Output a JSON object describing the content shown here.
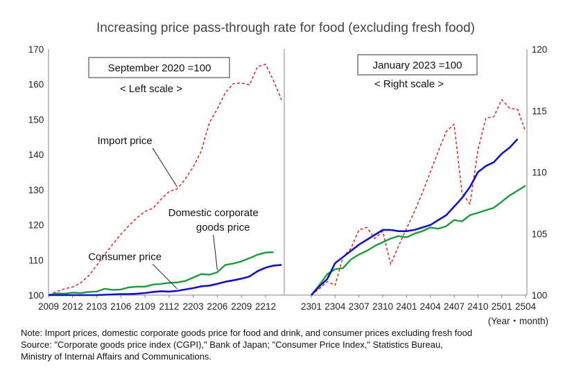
{
  "title": "Increasing price pass-through rate for food (excluding fresh food)",
  "xunit": "(Year・month)",
  "note": "Note: Import prices, domestic corporate goods price for food and drink, and consumer prices excluding fresh food",
  "source_line1": "Source: \"Corporate goods price index (CGPI),\" Bank of Japan;  \"Consumer Price Index,\" Statistics Bureau,",
  "source_line2": "Ministry of Internal Affairs and Communications.",
  "colors": {
    "import": "#e02020",
    "domestic": "#1a9a3a",
    "consumer": "#1010c8",
    "axis": "#808080"
  },
  "chart_data": [
    {
      "type": "line",
      "box_label": "September 2020 =100",
      "scale_note": "< Left scale >",
      "ylim": [
        100,
        170
      ],
      "yticks": [
        100,
        110,
        120,
        130,
        140,
        150,
        160,
        170
      ],
      "xlim": [
        0,
        27
      ],
      "xtick_labels": [
        "2009",
        "2012",
        "2103",
        "2106",
        "2109",
        "2112",
        "2203",
        "2206",
        "2209",
        "2212"
      ],
      "xtick_positions": [
        0,
        3,
        6,
        9,
        12,
        15,
        18,
        21,
        24,
        27
      ],
      "annotations": [
        {
          "text": "Import price",
          "series": "import",
          "at": 16,
          "label_x": 9.5,
          "label_y": 143
        },
        {
          "text": "Domestic corporate",
          "text2": "goods price",
          "series": "domestic",
          "at": 21,
          "label_x": 20.5,
          "label_y": 122.5
        },
        {
          "text": "Consumer price",
          "series": "consumer",
          "at": 16,
          "label_x": 9.5,
          "label_y": 110
        }
      ],
      "series": [
        {
          "key": "import",
          "dashed": true,
          "values": [
            100,
            101,
            101.8,
            102.3,
            103.5,
            105.5,
            108.5,
            111.6,
            114.5,
            117.3,
            119.8,
            122,
            123.8,
            124.7,
            127.3,
            129.5,
            130.2,
            133,
            136.5,
            141,
            149,
            153,
            157.6,
            160.2,
            160.4,
            159.8,
            165,
            165.7,
            161,
            155.5
          ]
        },
        {
          "key": "domestic",
          "values": [
            100,
            100.5,
            100.4,
            100.7,
            100.6,
            100.9,
            101,
            101.8,
            101.5,
            101.6,
            102.2,
            102.4,
            102.4,
            103,
            103.2,
            103.5,
            103.6,
            104,
            105,
            106,
            105.8,
            106.5,
            108.6,
            109,
            109.6,
            110.5,
            111.5,
            112.1,
            112.2
          ]
        },
        {
          "key": "consumer",
          "values": [
            100,
            100,
            100,
            100,
            100,
            100,
            100,
            100.1,
            100.2,
            100.3,
            100.3,
            100.4,
            100.6,
            100.9,
            101.1,
            101,
            101.2,
            101.6,
            102,
            102.5,
            102.7,
            103.2,
            103.8,
            104.2,
            104.7,
            105.3,
            106.8,
            107.8,
            108.4,
            108.6
          ]
        }
      ]
    },
    {
      "type": "line",
      "box_label": "January 2023 =100",
      "scale_note": "< Right scale >",
      "ylim": [
        100,
        120
      ],
      "yticks": [
        100,
        105,
        110,
        115,
        120
      ],
      "xlim": [
        0,
        27
      ],
      "xtick_labels": [
        "2301",
        "2304",
        "2307",
        "2310",
        "2401",
        "2404",
        "2407",
        "2410",
        "2501",
        "2504"
      ],
      "xtick_positions": [
        0,
        3,
        6,
        9,
        12,
        15,
        18,
        21,
        24,
        27
      ],
      "series": [
        {
          "key": "import",
          "dashed": true,
          "values": [
            100,
            100.5,
            101.1,
            100.8,
            103.1,
            103.8,
            105.3,
            105.5,
            104.6,
            105.2,
            102.5,
            104,
            105.4,
            106.8,
            108.3,
            110,
            111.7,
            113.3,
            113.9,
            108.3,
            107.4,
            111.8,
            114.4,
            114.5,
            115.9,
            115.2,
            115.1,
            113.3
          ]
        },
        {
          "key": "domestic",
          "values": [
            100,
            100.8,
            101.7,
            102.1,
            102.2,
            102.9,
            103.3,
            103.6,
            104,
            104.3,
            104.6,
            104.8,
            104.7,
            105,
            105.2,
            105.5,
            105.4,
            105.6,
            106.1,
            106,
            106.5,
            106.7,
            106.9,
            107.1,
            107.6,
            108.1,
            108.5,
            108.9
          ]
        },
        {
          "key": "consumer",
          "values": [
            100,
            100.7,
            101.3,
            102.6,
            103.1,
            103.6,
            104.1,
            104.5,
            104.9,
            105.3,
            105.3,
            105.2,
            105.2,
            105.3,
            105.5,
            105.7,
            106.1,
            106.5,
            107.2,
            107.9,
            108.8,
            110,
            110.5,
            110.8,
            111.5,
            112,
            112.7
          ]
        }
      ]
    }
  ]
}
